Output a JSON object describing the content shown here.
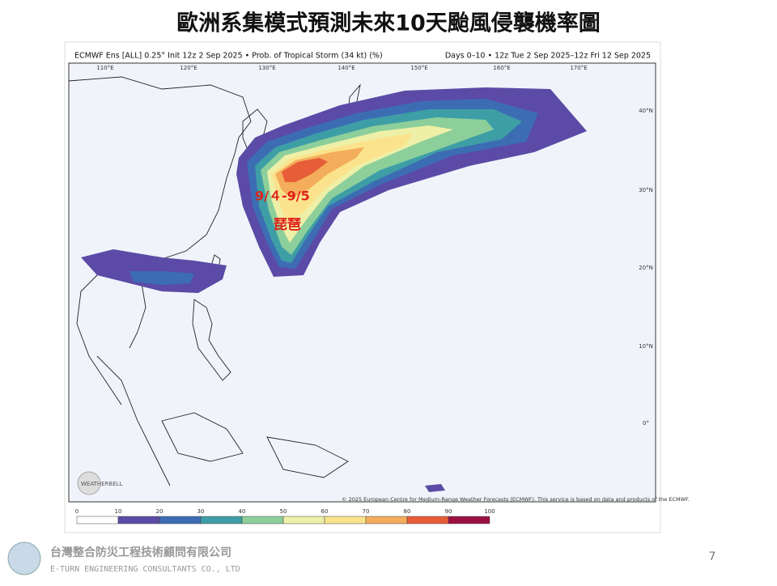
{
  "title": "歐洲系集模式預測未來10天颱風侵襲機率圖",
  "map": {
    "header_left": "ECMWF Ens [ALL] 0.25° Init 12z 2 Sep 2025 • Prob. of Tropical Storm (34 kt) (%)",
    "header_right": "Days 0–10 • 12z Tue 2 Sep 2025–12z Fri 12 Sep 2025",
    "lon_labels": [
      "110°E",
      "120°E",
      "130°E",
      "140°E",
      "150°E",
      "160°E",
      "170°E"
    ],
    "lat_labels": [
      "40°N",
      "30°N",
      "20°N",
      "10°N",
      "0°"
    ],
    "copyright": "© 2025 European Centre for Medium-Range Weather Forecasts (ECMWF). This service is based on data and products of the ECMWF.",
    "logo": "WEATHERBELL",
    "annotation_date": "9/４-9/5",
    "annotation_name": "琵琶",
    "colorbar": {
      "ticks": [
        0,
        10,
        20,
        30,
        40,
        50,
        60,
        70,
        80,
        90,
        100
      ],
      "colors": [
        "#ffffff",
        "#5b4ba6",
        "#3c6db3",
        "#3e9ea6",
        "#8dcf9b",
        "#eef0a8",
        "#fbe38d",
        "#f4ad5a",
        "#e65d38",
        "#9c0f42"
      ]
    }
  },
  "footer": {
    "company": "台灣整合防災工程技術顧問有限公司",
    "company_en": "E-TURN ENGINEERING CONSULTANTS CO., LTD",
    "page": "7"
  }
}
